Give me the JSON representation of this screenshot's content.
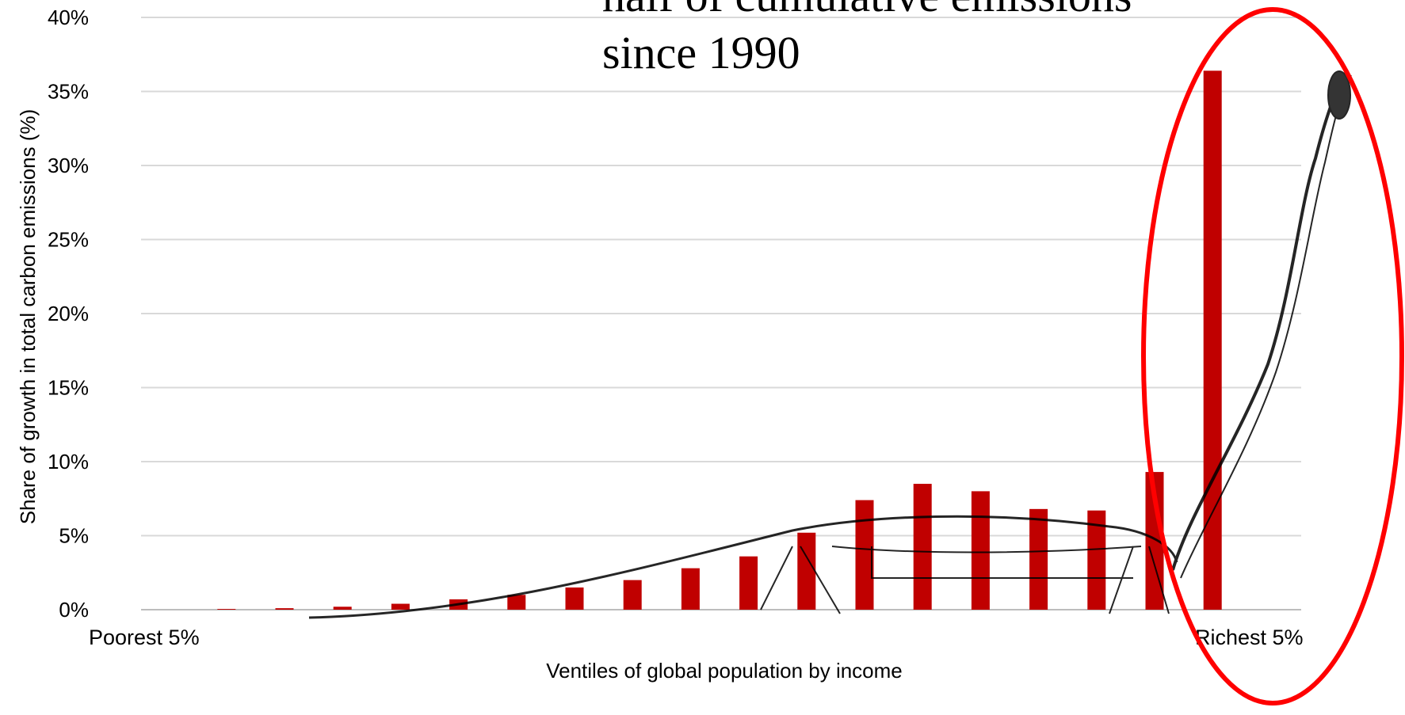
{
  "chart_data": {
    "type": "bar",
    "title_lines": [
      "half of cumulative emissions",
      "since 1990"
    ],
    "xlabel": "Ventiles of global population by income",
    "ylabel": "Share of growth in total carbon emissions (%)",
    "ylim": [
      0,
      40
    ],
    "yticks": [
      "0%",
      "5%",
      "10%",
      "15%",
      "20%",
      "25%",
      "30%",
      "35%",
      "40%"
    ],
    "grid": true,
    "categories": [
      "Poorest 5%",
      "",
      "",
      "",
      "",
      "",
      "",
      "",
      "",
      "",
      "",
      "",
      "",
      "",
      "",
      "",
      "",
      "",
      "",
      "Richest 5%"
    ],
    "values": [
      0.0,
      0.05,
      0.1,
      0.2,
      0.4,
      0.7,
      1.0,
      1.5,
      2.0,
      2.8,
      3.6,
      5.2,
      7.4,
      8.5,
      8.0,
      6.8,
      6.7,
      9.3,
      36.4,
      0
    ],
    "bar_color": "#c00000",
    "highlight_color": "#ff0000"
  }
}
